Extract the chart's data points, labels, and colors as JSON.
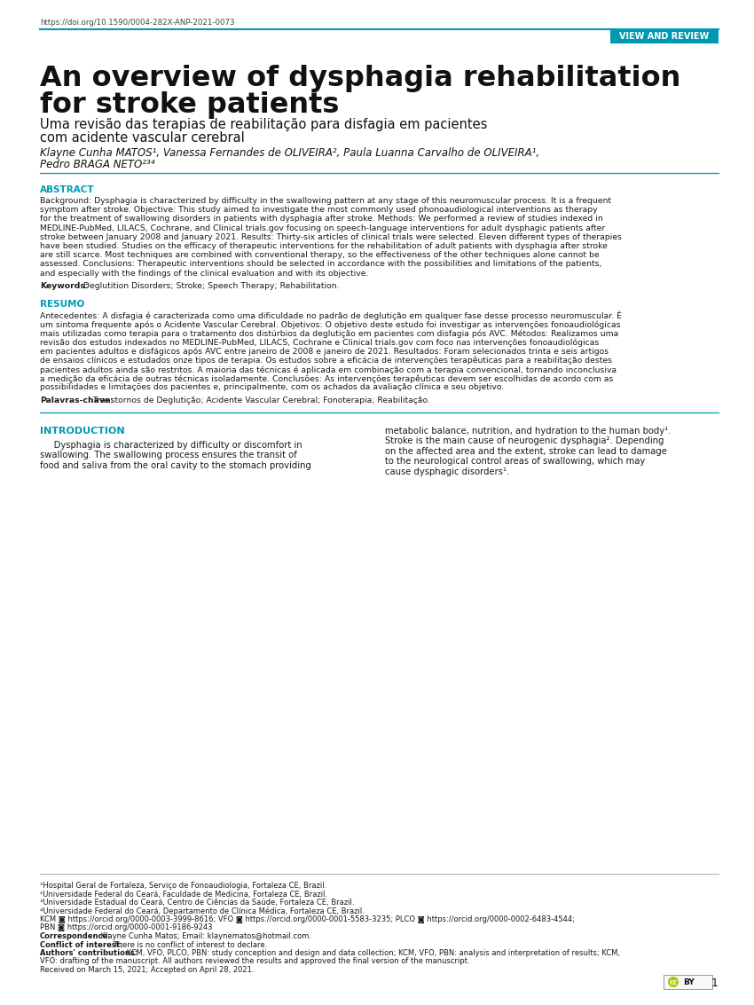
{
  "doi": "https://doi.org/10.1590/0004-282X-ANP-2021-0073",
  "tag_text": "VIEW AND REVIEW",
  "tag_bg": "#0099B4",
  "tag_text_color": "#ffffff",
  "title_line1": "An overview of dysphagia rehabilitation",
  "title_line2": "for stroke patients",
  "subtitle_line1": "Uma revisão das terapias de reabilitação para disfagia em pacientes",
  "subtitle_line2": "com acidente vascular cerebral",
  "authors_line1": "Klayne Cunha MATOS¹, Vanessa Fernandes de OLIVEIRA², Paula Luanna Carvalho de OLIVEIRA¹,",
  "authors_line2": "Pedro BRAGA NETO²³⁴",
  "abstract_label": "ABSTRACT",
  "abstract_lines": [
    "Background: Dysphagia is characterized by difficulty in the swallowing pattern at any stage of this neuromuscular process. It is a frequent",
    "symptom after stroke. Objective: This study aimed to investigate the most commonly used phonoaudiological interventions as therapy",
    "for the treatment of swallowing disorders in patients with dysphagia after stroke. Methods: We performed a review of studies indexed in",
    "MEDLINE-PubMed, LILACS, Cochrane, and Clinical trials.gov focusing on speech-language interventions for adult dysphagic patients after",
    "stroke between January 2008 and January 2021. Results: Thirty-six articles of clinical trials were selected. Eleven different types of therapies",
    "have been studied. Studies on the efficacy of therapeutic interventions for the rehabilitation of adult patients with dysphagia after stroke",
    "are still scarce. Most techniques are combined with conventional therapy, so the effectiveness of the other techniques alone cannot be",
    "assessed. Conclusions: Therapeutic interventions should be selected in accordance with the possibilities and limitations of the patients,",
    "and especially with the findings of the clinical evaluation and with its objective."
  ],
  "keywords_label": "Keywords:",
  "keywords_text": " Deglutition Disorders; Stroke; Speech Therapy; Rehabilitation.",
  "resumo_label": "RESUMO",
  "resumo_lines": [
    "Antecedentes: A disfagia é caracterizada como uma dificuldade no padrão de deglutição em qualquer fase desse processo neuromuscular. É",
    "um sintoma frequente após o Acidente Vascular Cerebral. Objetivos: O objetivo deste estudo foi investigar as intervenções fonoaudiológicas",
    "mais utilizadas como terapia para o tratamento dos distúrbios da deglutição em pacientes com disfagia pós AVC. Métodos: Realizamos uma",
    "revisão dos estudos indexados no MEDLINE-PubMed, LILACS, Cochrane e Clinical trials.gov com foco nas intervenções fonoaudiológicas",
    "em pacientes adultos e disfágicos após AVC entre janeiro de 2008 e janeiro de 2021. Resultados: Foram selecionados trinta e seis artigos",
    "de ensaios clínicos e estudados onze tipos de terapia. Os estudos sobre a eficácia de intervenções terapêuticas para a reabilitação destes",
    "pacientes adultos ainda são restritos. A maioria das técnicas é aplicada em combinação com a terapia convencional, tornando inconclusiva",
    "a medição da eficácia de outras técnicas isoladamente. Conclusões: As intervenções terapêuticas devem ser escolhidas de acordo com as",
    "possibilidades e limitações dos pacientes e, principalmente, com os achados da avaliação clínica e seu objetivo."
  ],
  "palavras_label": "Palavras-chave:",
  "palavras_text": " Transtornos de Deglutição; Acidente Vascular Cerebral; Fonoterapia; Reabilitação.",
  "intro_label": "INTRODUCTION",
  "intro_left_lines": [
    "     Dysphagia is characterized by difficulty or discomfort in",
    "swallowing. The swallowing process ensures the transit of",
    "food and saliva from the oral cavity to the stomach providing"
  ],
  "intro_right_lines": [
    "metabolic balance, nutrition, and hydration to the human body¹.",
    "Stroke is the main cause of neurogenic dysphagia². Depending",
    "on the affected area and the extent, stroke can lead to damage",
    "to the neurological control areas of swallowing, which may",
    "cause dysphagic disorders¹."
  ],
  "footnote1": "¹Hospital Geral de Fortaleza, Serviço de Fonoaudiologia, Fortaleza CE, Brazil.",
  "footnote2": "²Universidade Federal do Ceará, Faculdade de Medicina, Fortaleza CE, Brazil.",
  "footnote3": "³Universidade Estadual do Ceará, Centro de Ciências da Saúde, Fortaleza CE, Brazil.",
  "footnote4": "⁴Universidade Federal do Ceará, Departamento de Clínica Médica, Fortaleza CE, Brazil.",
  "footnote5a": "KCM ◙ https://orcid.org/0000-0003-3999-8616; VFO ◙ https://orcid.org/0000-0001-5583-3235; PLCO ◙ https://orcid.org/0000-0002-6483-4544;",
  "footnote5b": "PBN ◙ https://orcid.org/0000-0001-9186-9243",
  "footnote6": "Correspondence: Klayne Cunha Matos; Email: klaynematos@hotmail.com.",
  "footnote7": "Conflict of interest: There is no conflict of interest to declare.",
  "footnote8a": "Authors' contributions: KCM, VFO, PLCO, PBN: study conception and design and data collection; KCM, VFO, PBN: analysis and interpretation of results; KCM,",
  "footnote8b": "VFO: drafting of the manuscript. All authors reviewed the results and approved the final version of the manuscript.",
  "footnote9": "Received on March 15, 2021; Accepted on April 28, 2021.",
  "page_number": "1",
  "accent_color": "#0099B4",
  "bg_color": "#ffffff",
  "text_color": "#1a1a1a",
  "line_color": "#0099B4",
  "gray_line_color": "#aaaaaa"
}
